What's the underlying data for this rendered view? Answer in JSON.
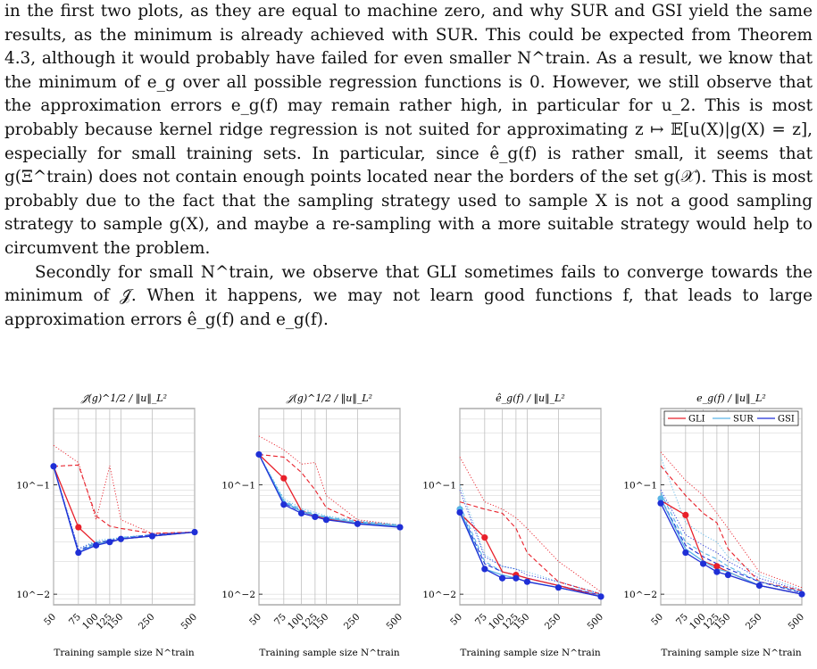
{
  "paragraphs": [
    "in the first two plots, as they are equal to machine zero, and why SUR and GSI yield the same results, as the minimum is already achieved with SUR. This could be expected from Theorem 4.3, although it would probably have failed for even smaller N^train. As a result, we know that the minimum of e_g over all possible regression functions is 0. However, we still observe that the approximation errors e_g(f) may remain rather high, in particular for u_2. This is most probably because kernel ridge regression is not suited for approximating z ↦ 𝔼[u(X)|g(X) = z], especially for small training sets. In particular, since ê_g(f) is rather small, it seems that g(Ξ^train) does not contain enough points located near the borders of the set g(𝒳). This is most probably due to the fact that the sampling strategy used to sample X is not a good sampling strategy to sample g(X), and maybe a re-sampling with a more suitable strategy would help to circumvent the problem.",
    "Secondly for small N^train, we observe that GLI sometimes fails to converge towards the minimum of 𝒥̂. When it happens, we may not learn good functions f, that leads to large approximation errors ê_g(f) and e_g(f)."
  ],
  "colors": {
    "GLI": "#e8202a",
    "SUR": "#5ab4e6",
    "GSI": "#1f2fd6",
    "grid": "#cfcfcf",
    "vline": "#bfbfbf"
  },
  "figure": {
    "xlabel": "Training sample size N^train",
    "x_ticks": [
      "50",
      "75",
      "100",
      "125",
      "150",
      "250",
      "500"
    ],
    "y_tick_labels": [
      "10^−1",
      "10^−2"
    ],
    "legend": [
      "GLI",
      "SUR",
      "GSI"
    ],
    "titles": [
      "𝒥̂(g)^1/2 / ‖u‖_L²",
      "𝒥(g)^1/2 / ‖u‖_L²",
      "ê_g(f) / ‖u‖_L²",
      "e_g(f) / ‖u‖_L²"
    ]
  },
  "chart_data": [
    {
      "type": "line",
      "title": "𝒥̂(g)^1/2 / ‖u‖_L²",
      "xlabel": "Training sample size N^train",
      "x": [
        50,
        75,
        100,
        125,
        150,
        250,
        500
      ],
      "yscale": "log",
      "ylim": [
        0.008,
        0.5
      ],
      "series": [
        {
          "name": "GLI",
          "style": "solid",
          "values": [
            0.148,
            0.041,
            0.029,
            0.03,
            0.032,
            0.034,
            0.037
          ]
        },
        {
          "name": "GLI",
          "style": "dashed",
          "values": [
            0.148,
            0.152,
            0.052,
            0.042,
            0.04,
            0.036,
            0.037
          ]
        },
        {
          "name": "GLI",
          "style": "dotted",
          "values": [
            0.23,
            0.16,
            0.048,
            0.15,
            0.048,
            0.036,
            0.037
          ]
        },
        {
          "name": "SUR",
          "style": "solid",
          "values": [
            0.148,
            0.024,
            0.029,
            0.03,
            0.032,
            0.034,
            0.037
          ]
        },
        {
          "name": "SUR",
          "style": "dashed",
          "values": [
            0.148,
            0.025,
            0.03,
            0.031,
            0.033,
            0.035,
            0.037
          ]
        },
        {
          "name": "SUR",
          "style": "dotted",
          "values": [
            0.148,
            0.026,
            0.031,
            0.032,
            0.033,
            0.035,
            0.037
          ]
        },
        {
          "name": "GSI",
          "style": "solid",
          "values": [
            0.148,
            0.024,
            0.028,
            0.03,
            0.032,
            0.034,
            0.037
          ]
        },
        {
          "name": "GSI",
          "style": "dashed",
          "values": [
            0.148,
            0.025,
            0.029,
            0.031,
            0.032,
            0.035,
            0.037
          ]
        },
        {
          "name": "GSI",
          "style": "dotted",
          "values": [
            0.148,
            0.026,
            0.03,
            0.031,
            0.033,
            0.035,
            0.037
          ]
        }
      ],
      "markers": [
        {
          "series": "GLI",
          "x": 75,
          "y": 0.041
        },
        {
          "series": "GSI",
          "x": 50,
          "y": 0.148
        },
        {
          "series": "GSI",
          "x": 75,
          "y": 0.024
        },
        {
          "series": "GSI",
          "x": 100,
          "y": 0.028
        },
        {
          "series": "GSI",
          "x": 125,
          "y": 0.03
        },
        {
          "series": "GSI",
          "x": 150,
          "y": 0.032
        },
        {
          "series": "GSI",
          "x": 250,
          "y": 0.034
        },
        {
          "series": "GSI",
          "x": 500,
          "y": 0.037
        }
      ]
    },
    {
      "type": "line",
      "title": "𝒥(g)^1/2 / ‖u‖_L²",
      "xlabel": "Training sample size N^train",
      "x": [
        50,
        75,
        100,
        125,
        150,
        250,
        500
      ],
      "yscale": "log",
      "ylim": [
        0.008,
        0.5
      ],
      "series": [
        {
          "name": "GLI",
          "style": "solid",
          "values": [
            0.19,
            0.115,
            0.058,
            0.052,
            0.049,
            0.044,
            0.042
          ]
        },
        {
          "name": "GLI",
          "style": "dashed",
          "values": [
            0.19,
            0.18,
            0.13,
            0.09,
            0.062,
            0.046,
            0.042
          ]
        },
        {
          "name": "GLI",
          "style": "dotted",
          "values": [
            0.28,
            0.21,
            0.155,
            0.16,
            0.08,
            0.048,
            0.043
          ]
        },
        {
          "name": "SUR",
          "style": "solid",
          "values": [
            0.19,
            0.07,
            0.057,
            0.053,
            0.05,
            0.045,
            0.042
          ]
        },
        {
          "name": "SUR",
          "style": "dashed",
          "values": [
            0.19,
            0.072,
            0.059,
            0.054,
            0.051,
            0.046,
            0.043
          ]
        },
        {
          "name": "SUR",
          "style": "dotted",
          "values": [
            0.19,
            0.075,
            0.061,
            0.056,
            0.052,
            0.047,
            0.043
          ]
        },
        {
          "name": "GSI",
          "style": "solid",
          "values": [
            0.19,
            0.066,
            0.055,
            0.051,
            0.048,
            0.044,
            0.041
          ]
        },
        {
          "name": "GSI",
          "style": "dashed",
          "values": [
            0.19,
            0.068,
            0.057,
            0.052,
            0.049,
            0.045,
            0.042
          ]
        },
        {
          "name": "GSI",
          "style": "dotted",
          "values": [
            0.19,
            0.07,
            0.058,
            0.053,
            0.05,
            0.045,
            0.042
          ]
        }
      ],
      "markers": [
        {
          "series": "GLI",
          "x": 75,
          "y": 0.115
        },
        {
          "series": "GSI",
          "x": 50,
          "y": 0.19
        },
        {
          "series": "GSI",
          "x": 75,
          "y": 0.066
        },
        {
          "series": "GSI",
          "x": 100,
          "y": 0.055
        },
        {
          "series": "GSI",
          "x": 125,
          "y": 0.051
        },
        {
          "series": "GSI",
          "x": 150,
          "y": 0.048
        },
        {
          "series": "GSI",
          "x": 250,
          "y": 0.044
        },
        {
          "series": "GSI",
          "x": 500,
          "y": 0.041
        }
      ]
    },
    {
      "type": "line",
      "title": "ê_g(f) / ‖u‖_L²",
      "xlabel": "Training sample size N^train",
      "x": [
        50,
        75,
        100,
        125,
        150,
        250,
        500
      ],
      "yscale": "log",
      "ylim": [
        0.008,
        0.5
      ],
      "series": [
        {
          "name": "GLI",
          "style": "solid",
          "values": [
            0.055,
            0.033,
            0.016,
            0.015,
            0.014,
            0.012,
            0.0095
          ]
        },
        {
          "name": "GLI",
          "style": "dashed",
          "values": [
            0.07,
            0.06,
            0.055,
            0.04,
            0.024,
            0.013,
            0.01
          ]
        },
        {
          "name": "GLI",
          "style": "dotted",
          "values": [
            0.18,
            0.07,
            0.06,
            0.05,
            0.04,
            0.02,
            0.0105
          ]
        },
        {
          "name": "SUR",
          "style": "solid",
          "values": [
            0.06,
            0.017,
            0.015,
            0.014,
            0.013,
            0.0115,
            0.0095
          ]
        },
        {
          "name": "SUR",
          "style": "dashed",
          "values": [
            0.065,
            0.02,
            0.016,
            0.015,
            0.014,
            0.012,
            0.0098
          ]
        },
        {
          "name": "SUR",
          "style": "dotted",
          "values": [
            0.1,
            0.023,
            0.018,
            0.017,
            0.016,
            0.013,
            0.0102
          ]
        },
        {
          "name": "GSI",
          "style": "solid",
          "values": [
            0.056,
            0.017,
            0.014,
            0.014,
            0.013,
            0.0115,
            0.0095
          ]
        },
        {
          "name": "GSI",
          "style": "dashed",
          "values": [
            0.06,
            0.019,
            0.016,
            0.015,
            0.014,
            0.012,
            0.0098
          ]
        },
        {
          "name": "GSI",
          "style": "dotted",
          "values": [
            0.09,
            0.022,
            0.018,
            0.017,
            0.015,
            0.013,
            0.01
          ]
        }
      ],
      "markers": [
        {
          "series": "GLI",
          "x": 75,
          "y": 0.033
        },
        {
          "series": "GLI",
          "x": 125,
          "y": 0.015
        },
        {
          "series": "SUR",
          "x": 50,
          "y": 0.06
        },
        {
          "series": "GSI",
          "x": 50,
          "y": 0.056
        },
        {
          "series": "GSI",
          "x": 75,
          "y": 0.017
        },
        {
          "series": "GSI",
          "x": 100,
          "y": 0.014
        },
        {
          "series": "GSI",
          "x": 125,
          "y": 0.014
        },
        {
          "series": "GSI",
          "x": 150,
          "y": 0.013
        },
        {
          "series": "GSI",
          "x": 250,
          "y": 0.0115
        },
        {
          "series": "GSI",
          "x": 500,
          "y": 0.0095
        }
      ]
    },
    {
      "type": "line",
      "title": "e_g(f) / ‖u‖_L²",
      "xlabel": "Training sample size N^train",
      "x": [
        50,
        75,
        100,
        125,
        150,
        250,
        500
      ],
      "yscale": "log",
      "ylim": [
        0.008,
        0.5
      ],
      "legend_position": "top-right",
      "series": [
        {
          "name": "GLI",
          "style": "solid",
          "values": [
            0.072,
            0.053,
            0.02,
            0.018,
            0.016,
            0.012,
            0.01
          ]
        },
        {
          "name": "GLI",
          "style": "dashed",
          "values": [
            0.15,
            0.08,
            0.055,
            0.045,
            0.026,
            0.013,
            0.0108
          ]
        },
        {
          "name": "GLI",
          "style": "dotted",
          "values": [
            0.2,
            0.11,
            0.08,
            0.055,
            0.04,
            0.016,
            0.0115
          ]
        },
        {
          "name": "SUR",
          "style": "solid",
          "values": [
            0.075,
            0.026,
            0.02,
            0.017,
            0.016,
            0.012,
            0.01
          ]
        },
        {
          "name": "SUR",
          "style": "dashed",
          "values": [
            0.085,
            0.03,
            0.024,
            0.021,
            0.018,
            0.013,
            0.0105
          ]
        },
        {
          "name": "SUR",
          "style": "dotted",
          "values": [
            0.18,
            0.045,
            0.035,
            0.03,
            0.022,
            0.015,
            0.011
          ]
        },
        {
          "name": "GSI",
          "style": "solid",
          "values": [
            0.068,
            0.024,
            0.019,
            0.016,
            0.015,
            0.012,
            0.01
          ]
        },
        {
          "name": "GSI",
          "style": "dashed",
          "values": [
            0.075,
            0.028,
            0.022,
            0.019,
            0.017,
            0.013,
            0.0103
          ]
        },
        {
          "name": "GSI",
          "style": "dotted",
          "values": [
            0.09,
            0.035,
            0.028,
            0.024,
            0.02,
            0.014,
            0.0108
          ]
        }
      ],
      "markers": [
        {
          "series": "GLI",
          "x": 75,
          "y": 0.053
        },
        {
          "series": "GLI",
          "x": 125,
          "y": 0.018
        },
        {
          "series": "SUR",
          "x": 50,
          "y": 0.075
        },
        {
          "series": "GSI",
          "x": 50,
          "y": 0.068
        },
        {
          "series": "GSI",
          "x": 75,
          "y": 0.024
        },
        {
          "series": "GSI",
          "x": 100,
          "y": 0.019
        },
        {
          "series": "GSI",
          "x": 125,
          "y": 0.016
        },
        {
          "series": "GSI",
          "x": 150,
          "y": 0.015
        },
        {
          "series": "GSI",
          "x": 250,
          "y": 0.012
        },
        {
          "series": "GSI",
          "x": 500,
          "y": 0.01
        }
      ]
    }
  ]
}
